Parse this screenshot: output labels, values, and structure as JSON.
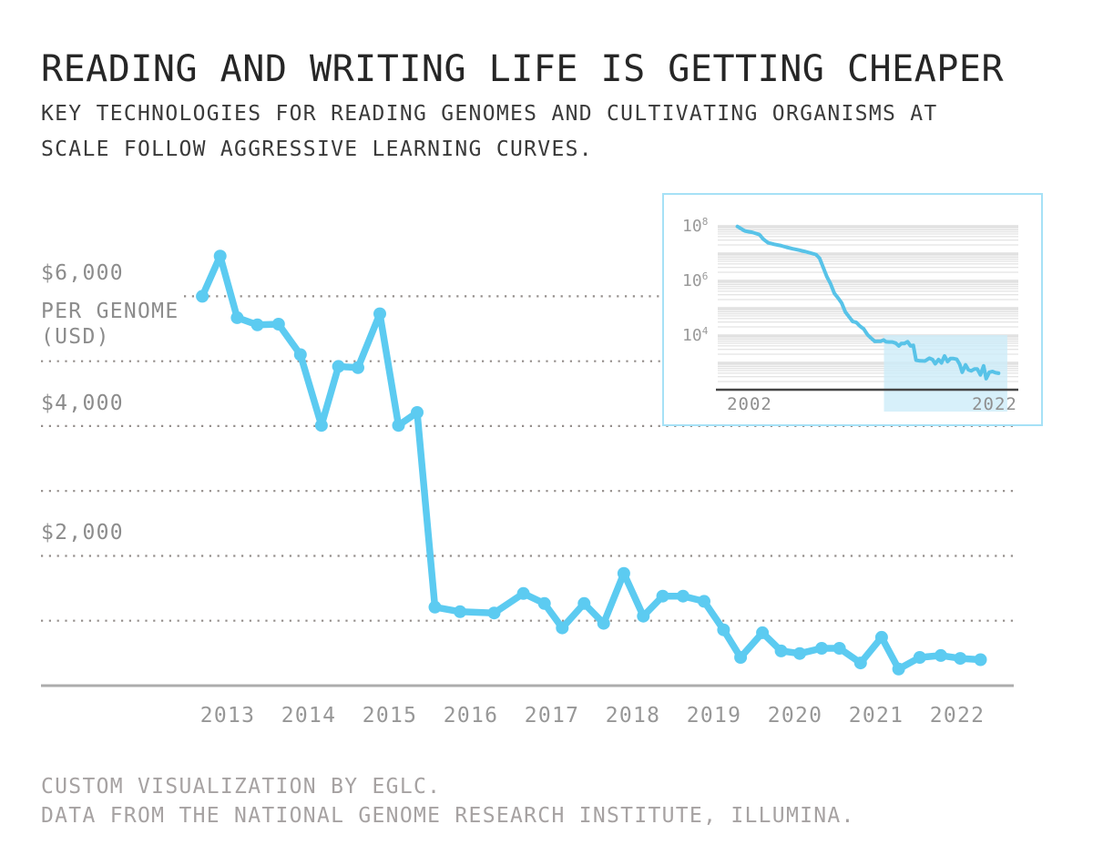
{
  "page": {
    "title": "READING AND WRITING LIFE IS GETTING CHEAPER",
    "subtitle_line1": "KEY TECHNOLOGIES FOR READING GENOMES AND CULTIVATING ORGANISMS AT",
    "subtitle_line2": "SCALE FOLLOW AGGRESSIVE LEARNING CURVES.",
    "footer_line1": "CUSTOM VISUALIZATION BY EGLC.",
    "footer_line2": "DATA FROM THE NATIONAL GENOME RESEARCH INSTITUTE, ILLUMINA."
  },
  "colors": {
    "line": "#5CCBF1",
    "inset_line": "#58C3E8",
    "grid_dot": "#948E8B",
    "axis": "#ACACAC",
    "label_gray": "#8C8C8C",
    "inset_axis": "#454545",
    "inset_highlight": "#CDECF9",
    "inset_border": "#A6E1F6",
    "title_ink": "#262626"
  },
  "chart_data": [
    {
      "id": "main",
      "type": "line",
      "yscale": "linear",
      "xlim": [
        2010.7,
        2022.7
      ],
      "ylim": [
        0,
        7100
      ],
      "grid": "dotted-horizontal",
      "y_axis_unit_lines": [
        "PER GENOME",
        "(USD)"
      ],
      "y_tick_labels": [
        {
          "label": "$6,000",
          "value": 6000
        },
        {
          "label": "$4,000",
          "value": 4000
        },
        {
          "label": "$2,000",
          "value": 2000
        }
      ],
      "gridlines": [
        {
          "value": 6000,
          "full_width": false
        },
        {
          "value": 5000,
          "full_width": true
        },
        {
          "value": 4000,
          "full_width": true
        },
        {
          "value": 3000,
          "full_width": true
        },
        {
          "value": 2000,
          "full_width": true
        },
        {
          "value": 1000,
          "full_width": true
        }
      ],
      "x_tick_labels": [
        "2013",
        "2014",
        "2015",
        "2016",
        "2017",
        "2018",
        "2019",
        "2020",
        "2021",
        "2022"
      ],
      "series": [
        {
          "name": "cost-per-genome-usd",
          "points": [
            [
              2012.69,
              6000
            ],
            [
              2012.91,
              6620
            ],
            [
              2013.12,
              5670
            ],
            [
              2013.37,
              5560
            ],
            [
              2013.63,
              5570
            ],
            [
              2013.9,
              5100
            ],
            [
              2014.16,
              4010
            ],
            [
              2014.37,
              4920
            ],
            [
              2014.61,
              4900
            ],
            [
              2014.88,
              5730
            ],
            [
              2015.11,
              4010
            ],
            [
              2015.34,
              4210
            ],
            [
              2015.56,
              1210
            ],
            [
              2015.87,
              1140
            ],
            [
              2016.29,
              1120
            ],
            [
              2016.65,
              1420
            ],
            [
              2016.91,
              1265
            ],
            [
              2017.13,
              890
            ],
            [
              2017.4,
              1265
            ],
            [
              2017.64,
              960
            ],
            [
              2017.89,
              1730
            ],
            [
              2018.13,
              1070
            ],
            [
              2018.37,
              1380
            ],
            [
              2018.62,
              1380
            ],
            [
              2018.88,
              1300
            ],
            [
              2019.12,
              860
            ],
            [
              2019.33,
              435
            ],
            [
              2019.6,
              815
            ],
            [
              2019.83,
              535
            ],
            [
              2020.06,
              495
            ],
            [
              2020.33,
              575
            ],
            [
              2020.55,
              575
            ],
            [
              2020.81,
              350
            ],
            [
              2021.07,
              745
            ],
            [
              2021.28,
              255
            ],
            [
              2021.54,
              435
            ],
            [
              2021.8,
              465
            ],
            [
              2022.04,
              420
            ],
            [
              2022.29,
              400
            ]
          ]
        }
      ]
    },
    {
      "id": "inset",
      "type": "line",
      "yscale": "log",
      "xlim": [
        1999.4,
        2023.9
      ],
      "ylim": [
        100,
        100000000
      ],
      "grid": "log-minor-horizontal",
      "y_tick_labels": [
        {
          "base": "10",
          "exp": "8",
          "value": 100000000
        },
        {
          "base": "10",
          "exp": "6",
          "value": 1000000
        },
        {
          "base": "10",
          "exp": "4",
          "value": 10000
        }
      ],
      "x_tick_labels": [
        {
          "label": "2002",
          "year": 2002
        },
        {
          "label": "2022",
          "year": 2022
        }
      ],
      "highlight_region": {
        "year_start": 2012.95,
        "year_end": 2023.0,
        "value_top": 10000
      },
      "series": [
        {
          "name": "cost-per-genome-usd-log",
          "points": [
            [
              2001.0,
              95000000
            ],
            [
              2001.6,
              65000000
            ],
            [
              2002.2,
              58000000
            ],
            [
              2002.8,
              48000000
            ],
            [
              2003.1,
              33000000
            ],
            [
              2003.5,
              24000000
            ],
            [
              2004.0,
              21000000
            ],
            [
              2004.5,
              19000000
            ],
            [
              2005.0,
              16500000
            ],
            [
              2005.5,
              14500000
            ],
            [
              2006.0,
              13000000
            ],
            [
              2006.5,
              11500000
            ],
            [
              2007.0,
              10000000
            ],
            [
              2007.4,
              8900000
            ],
            [
              2007.7,
              6500000
            ],
            [
              2008.0,
              3000000
            ],
            [
              2008.3,
              1350000
            ],
            [
              2008.6,
              750000
            ],
            [
              2008.9,
              340000
            ],
            [
              2009.2,
              230000
            ],
            [
              2009.5,
              150000
            ],
            [
              2009.8,
              70000
            ],
            [
              2010.1,
              47000
            ],
            [
              2010.4,
              31500
            ],
            [
              2010.7,
              29000
            ],
            [
              2011.0,
              21000
            ],
            [
              2011.3,
              16700
            ],
            [
              2011.6,
              10500
            ],
            [
              2011.9,
              7700
            ],
            [
              2012.2,
              5900
            ],
            [
              2012.45,
              6000
            ],
            [
              2012.69,
              6000
            ],
            [
              2012.91,
              6620
            ],
            [
              2013.12,
              5670
            ],
            [
              2013.37,
              5560
            ],
            [
              2013.63,
              5570
            ],
            [
              2013.9,
              5100
            ],
            [
              2014.16,
              4010
            ],
            [
              2014.37,
              4920
            ],
            [
              2014.61,
              4900
            ],
            [
              2014.88,
              5730
            ],
            [
              2015.11,
              4010
            ],
            [
              2015.34,
              4210
            ],
            [
              2015.56,
              1210
            ],
            [
              2015.87,
              1140
            ],
            [
              2016.29,
              1120
            ],
            [
              2016.65,
              1420
            ],
            [
              2016.91,
              1265
            ],
            [
              2017.13,
              890
            ],
            [
              2017.4,
              1265
            ],
            [
              2017.64,
              960
            ],
            [
              2017.89,
              1730
            ],
            [
              2018.13,
              1070
            ],
            [
              2018.37,
              1380
            ],
            [
              2018.62,
              1380
            ],
            [
              2018.88,
              1300
            ],
            [
              2019.12,
              860
            ],
            [
              2019.33,
              435
            ],
            [
              2019.6,
              815
            ],
            [
              2019.83,
              535
            ],
            [
              2020.06,
              495
            ],
            [
              2020.33,
              575
            ],
            [
              2020.55,
              575
            ],
            [
              2020.81,
              350
            ],
            [
              2021.07,
              745
            ],
            [
              2021.28,
              255
            ],
            [
              2021.54,
              435
            ],
            [
              2021.8,
              465
            ],
            [
              2022.04,
              420
            ],
            [
              2022.29,
              400
            ]
          ]
        }
      ]
    }
  ]
}
